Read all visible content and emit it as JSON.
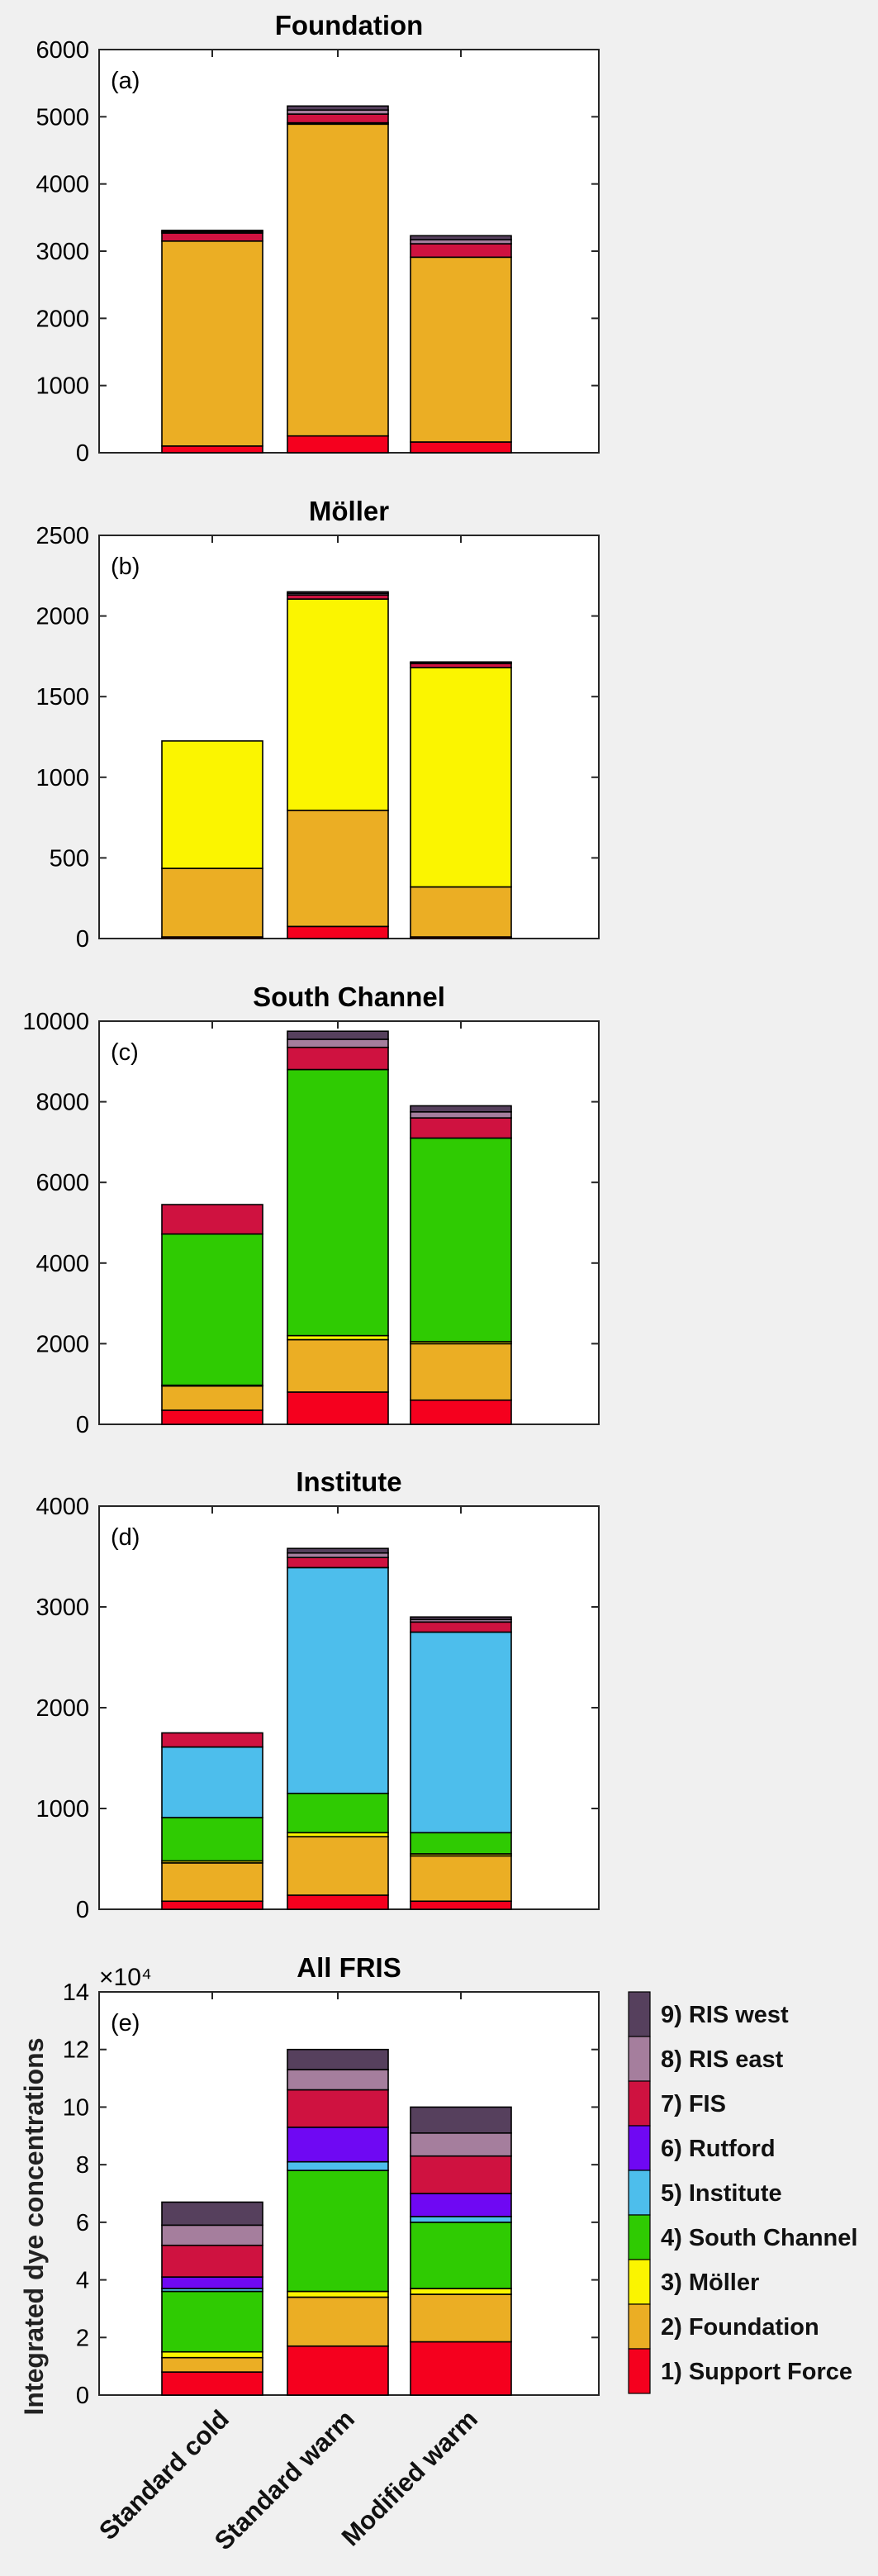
{
  "chart_data": [
    {
      "type": "bar",
      "stacked": true,
      "panel": "(a)",
      "title": "Foundation",
      "categories": [
        "Standard cold",
        "Standard warm",
        "Modified warm"
      ],
      "ylim": [
        0,
        6000
      ],
      "yticks": [
        0,
        1000,
        2000,
        3000,
        4000,
        5000,
        6000
      ],
      "series": [
        {
          "name": "1) Support Force",
          "values": [
            100,
            250,
            160
          ]
        },
        {
          "name": "2) Foundation",
          "values": [
            3050,
            4640,
            2750
          ]
        },
        {
          "name": "3) Möller",
          "values": [
            0,
            20,
            0
          ]
        },
        {
          "name": "4) South Channel",
          "values": [
            0,
            0,
            0
          ]
        },
        {
          "name": "5) Institute",
          "values": [
            0,
            0,
            0
          ]
        },
        {
          "name": "6) Rutford",
          "values": [
            0,
            0,
            0
          ]
        },
        {
          "name": "7) FIS",
          "values": [
            120,
            130,
            200
          ]
        },
        {
          "name": "8) RIS east",
          "values": [
            20,
            60,
            60
          ]
        },
        {
          "name": "9) RIS west",
          "values": [
            20,
            60,
            60
          ]
        }
      ]
    },
    {
      "type": "bar",
      "stacked": true,
      "panel": "(b)",
      "title": "Möller",
      "categories": [
        "Standard cold",
        "Standard warm",
        "Modified warm"
      ],
      "ylim": [
        0,
        2500
      ],
      "yticks": [
        0,
        500,
        1000,
        1500,
        2000,
        2500
      ],
      "series": [
        {
          "name": "1) Support Force",
          "values": [
            10,
            75,
            10
          ]
        },
        {
          "name": "2) Foundation",
          "values": [
            425,
            720,
            310
          ]
        },
        {
          "name": "3) Möller",
          "values": [
            790,
            1310,
            1360
          ]
        },
        {
          "name": "4) South Channel",
          "values": [
            0,
            0,
            0
          ]
        },
        {
          "name": "5) Institute",
          "values": [
            0,
            0,
            0
          ]
        },
        {
          "name": "6) Rutford",
          "values": [
            0,
            0,
            0
          ]
        },
        {
          "name": "7) FIS",
          "values": [
            0,
            25,
            25
          ]
        },
        {
          "name": "8) RIS east",
          "values": [
            0,
            10,
            5
          ]
        },
        {
          "name": "9) RIS west",
          "values": [
            0,
            10,
            5
          ]
        }
      ]
    },
    {
      "type": "bar",
      "stacked": true,
      "panel": "(c)",
      "title": "South Channel",
      "categories": [
        "Standard cold",
        "Standard warm",
        "Modified warm"
      ],
      "ylim": [
        0,
        10000
      ],
      "yticks": [
        0,
        2000,
        4000,
        6000,
        8000,
        10000
      ],
      "series": [
        {
          "name": "1) Support Force",
          "values": [
            350,
            800,
            600
          ]
        },
        {
          "name": "2) Foundation",
          "values": [
            600,
            1300,
            1400
          ]
        },
        {
          "name": "3) Möller",
          "values": [
            20,
            100,
            50
          ]
        },
        {
          "name": "4) South Channel",
          "values": [
            3750,
            6600,
            5050
          ]
        },
        {
          "name": "5) Institute",
          "values": [
            0,
            0,
            0
          ]
        },
        {
          "name": "6) Rutford",
          "values": [
            0,
            0,
            0
          ]
        },
        {
          "name": "7) FIS",
          "values": [
            730,
            550,
            500
          ]
        },
        {
          "name": "8) RIS east",
          "values": [
            0,
            200,
            150
          ]
        },
        {
          "name": "9) RIS west",
          "values": [
            0,
            200,
            150
          ]
        }
      ]
    },
    {
      "type": "bar",
      "stacked": true,
      "panel": "(d)",
      "title": "Institute",
      "categories": [
        "Standard cold",
        "Standard warm",
        "Modified warm"
      ],
      "ylim": [
        0,
        4000
      ],
      "yticks": [
        0,
        1000,
        2000,
        3000,
        4000
      ],
      "series": [
        {
          "name": "1) Support Force",
          "values": [
            80,
            140,
            80
          ]
        },
        {
          "name": "2) Foundation",
          "values": [
            380,
            580,
            450
          ]
        },
        {
          "name": "3) Möller",
          "values": [
            20,
            40,
            20
          ]
        },
        {
          "name": "4) South Channel",
          "values": [
            430,
            390,
            210
          ]
        },
        {
          "name": "5) Institute",
          "values": [
            700,
            2240,
            1990
          ]
        },
        {
          "name": "6) Rutford",
          "values": [
            0,
            0,
            0
          ]
        },
        {
          "name": "7) FIS",
          "values": [
            140,
            100,
            100
          ]
        },
        {
          "name": "8) RIS east",
          "values": [
            0,
            45,
            25
          ]
        },
        {
          "name": "9) RIS west",
          "values": [
            0,
            45,
            25
          ]
        }
      ]
    },
    {
      "type": "bar",
      "stacked": true,
      "panel": "(e)",
      "title": "All FRIS",
      "categories": [
        "Standard cold",
        "Standard warm",
        "Modified warm"
      ],
      "ylabel": "Integrated dye concentrations",
      "multiplier": "×10⁴",
      "ylim": [
        0,
        14
      ],
      "yticks": [
        0,
        2,
        4,
        6,
        8,
        10,
        12,
        14
      ],
      "series": [
        {
          "name": "1) Support Force",
          "values": [
            0.8,
            1.7,
            1.85
          ]
        },
        {
          "name": "2) Foundation",
          "values": [
            0.5,
            1.7,
            1.65
          ]
        },
        {
          "name": "3) Möller",
          "values": [
            0.2,
            0.2,
            0.2
          ]
        },
        {
          "name": "4) South Channel",
          "values": [
            2.1,
            4.2,
            2.3
          ]
        },
        {
          "name": "5) Institute",
          "values": [
            0.1,
            0.3,
            0.2
          ]
        },
        {
          "name": "6) Rutford",
          "values": [
            0.4,
            1.2,
            0.8
          ]
        },
        {
          "name": "7) FIS",
          "values": [
            1.1,
            1.3,
            1.3
          ]
        },
        {
          "name": "8) RIS east",
          "values": [
            0.7,
            0.7,
            0.8
          ]
        },
        {
          "name": "9) RIS west",
          "values": [
            0.8,
            0.7,
            0.9
          ]
        }
      ]
    }
  ],
  "legend": {
    "placement": "right",
    "entries": [
      "9) RIS west",
      "8) RIS east",
      "7) FIS",
      "6) Rutford",
      "5) Institute",
      "4) South Channel",
      "3) Möller",
      "2) Foundation",
      "1) Support Force"
    ]
  },
  "colors": {
    "1) Support Force": "#f5001e",
    "2) Foundation": "#ebae24",
    "3) Möller": "#fbf500",
    "4) South Channel": "#2fcb02",
    "5) Institute": "#4dbeec",
    "6) Rutford": "#6f08f3",
    "7) FIS": "#cf1240",
    "8) RIS east": "#a57e9d",
    "9) RIS west": "#56405d"
  }
}
